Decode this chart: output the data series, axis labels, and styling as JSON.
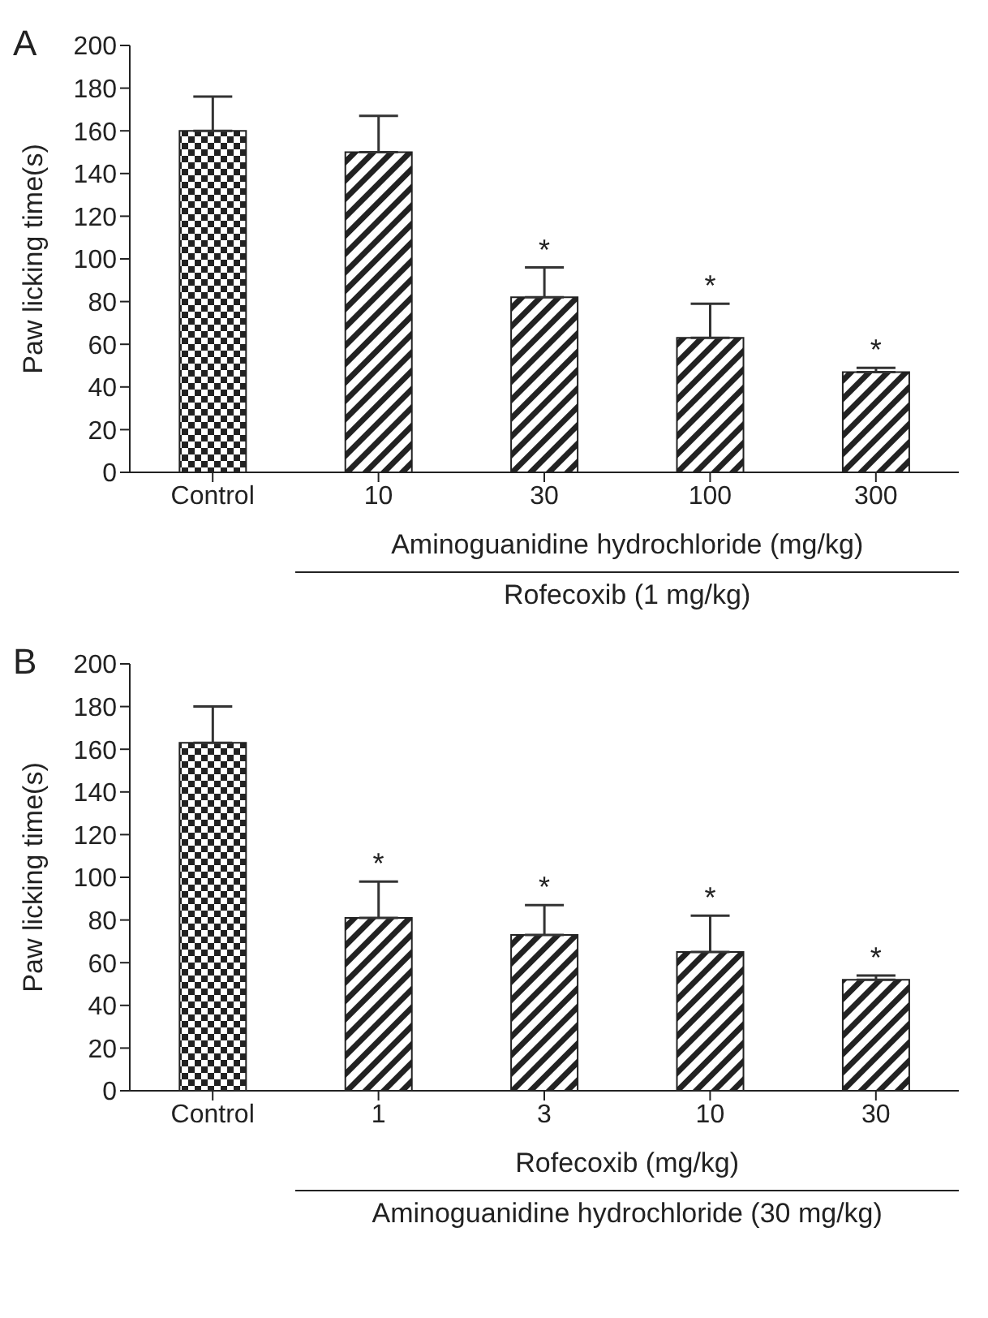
{
  "chart_data": [
    {
      "type": "bar",
      "title": "A",
      "ylabel": "Paw licking time(s)",
      "xlabel": "Aminoguanidine hydrochloride (mg/kg)",
      "categories": [
        "Control",
        "10",
        "30",
        "100",
        "300"
      ],
      "values": [
        160,
        150,
        82,
        63,
        47
      ],
      "errors": [
        [
          160,
          176
        ],
        [
          150,
          167
        ],
        [
          82,
          96
        ],
        [
          63,
          79
        ],
        [
          47,
          49
        ]
      ],
      "colors": [
        "#222222",
        "#222222",
        "#222222",
        "#222222",
        "#222222"
      ],
      "ylim": [
        0,
        200
      ],
      "yticks": [
        0,
        20,
        40,
        60,
        80,
        100,
        120,
        140,
        160,
        180,
        200
      ],
      "grid": false,
      "annotations": [
        {
          "text": "*",
          "x": "30",
          "y": 96
        },
        {
          "text": "*",
          "x": "100",
          "y": 79
        },
        {
          "text": "*",
          "x": "300",
          "y": 49
        },
        "Rofecoxib (1 mg/kg)"
      ]
    },
    {
      "type": "bar",
      "title": "B",
      "ylabel": "Paw licking time(s)",
      "xlabel": "Rofecoxib (mg/kg)",
      "categories": [
        "Control",
        "1",
        "3",
        "10",
        "30"
      ],
      "values": [
        163,
        81,
        73,
        65,
        52
      ],
      "errors": [
        [
          163,
          180
        ],
        [
          81,
          98
        ],
        [
          73,
          87
        ],
        [
          65,
          82
        ],
        [
          52,
          54
        ]
      ],
      "colors": [
        "#222222",
        "#222222",
        "#222222",
        "#222222",
        "#222222"
      ],
      "ylim": [
        0,
        200
      ],
      "yticks": [
        0,
        20,
        40,
        60,
        80,
        100,
        120,
        140,
        160,
        180,
        200
      ],
      "grid": false,
      "annotations": [
        {
          "text": "*",
          "x": "1",
          "y": 98
        },
        {
          "text": "*",
          "x": "3",
          "y": 87
        },
        {
          "text": "*",
          "x": "10",
          "y": 82
        },
        {
          "text": "*",
          "x": "30",
          "y": 54
        },
        "Aminoguanidine hydrochloride (30 mg/kg)"
      ]
    }
  ]
}
